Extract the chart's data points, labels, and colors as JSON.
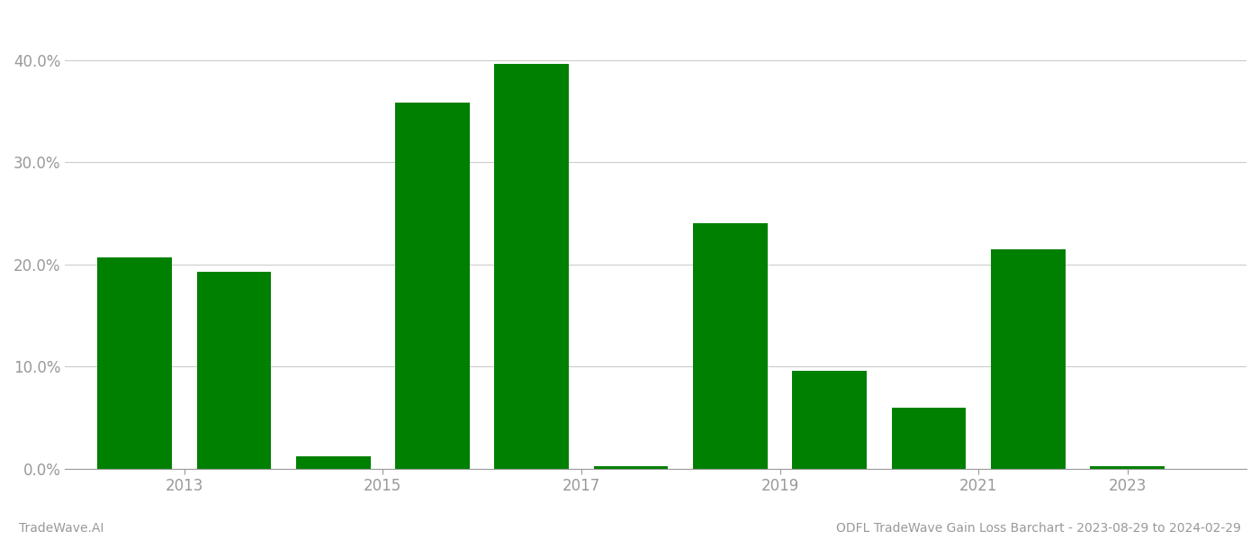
{
  "years": [
    2013,
    2014,
    2015,
    2016,
    2017,
    2018,
    2019,
    2020,
    2021,
    2022,
    2023
  ],
  "values": [
    0.207,
    0.193,
    0.012,
    0.358,
    0.396,
    0.002,
    0.24,
    0.096,
    0.06,
    0.215,
    0.002
  ],
  "bar_color": "#008000",
  "background_color": "#ffffff",
  "title": "ODFL TradeWave Gain Loss Barchart - 2023-08-29 to 2024-02-29",
  "watermark": "TradeWave.AI",
  "ylim": [
    0,
    0.435
  ],
  "yticks": [
    0.0,
    0.1,
    0.2,
    0.3,
    0.4
  ],
  "xtick_positions": [
    2013.5,
    2015.5,
    2017.5,
    2019.5,
    2021.5,
    2023.0
  ],
  "xtick_labels": [
    "2013",
    "2015",
    "2017",
    "2019",
    "2021",
    "2023"
  ],
  "grid_color": "#cccccc",
  "tick_color": "#999999",
  "title_fontsize": 10,
  "watermark_fontsize": 10,
  "bar_width": 0.75
}
